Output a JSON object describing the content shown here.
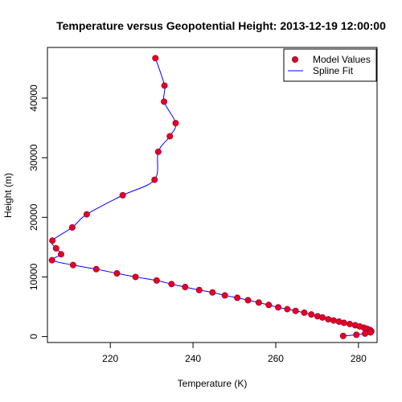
{
  "chart_data": {
    "type": "scatter",
    "title": "Temperature versus Geopotential Height: 2013-12-19 12:00:00",
    "xlabel": "Temperature (K)",
    "ylabel": "Height (m)",
    "xlim": [
      204.8,
      284.5
    ],
    "ylim": [
      -1000,
      48500
    ],
    "xticks": [
      220,
      240,
      260,
      280
    ],
    "yticks": [
      0,
      10000,
      20000,
      30000,
      40000
    ],
    "grid": false,
    "legend_position": "top-right",
    "colors": {
      "points": "#e8001c",
      "point_edge": "#9b0040",
      "line": "#0000ff"
    },
    "series": [
      {
        "name": "Model Values",
        "kind": "points",
        "temperature": [
          230.9,
          233.1,
          233.0,
          235.8,
          234.4,
          231.6,
          230.7,
          223.0,
          214.3,
          210.8,
          206.0,
          206.9,
          208.1,
          205.9,
          211.0,
          216.6,
          221.6,
          226.1,
          231.2,
          234.8,
          238.1,
          241.5,
          244.7,
          247.7,
          250.7,
          253.3,
          255.9,
          258.3,
          260.6,
          262.8,
          264.8,
          266.9,
          268.6,
          270.1,
          271.3,
          272.7,
          274.0,
          275.3,
          276.5,
          277.9,
          279.2,
          280.3,
          281.3,
          282.1,
          282.8,
          283.1,
          282.9,
          281.6,
          279.5,
          276.3
        ],
        "height": [
          46700,
          42100,
          39400,
          35800,
          33600,
          31000,
          26300,
          23700,
          20500,
          18300,
          16100,
          14800,
          13800,
          12800,
          12000,
          11300,
          10600,
          10000,
          9400,
          8800,
          8300,
          7800,
          7400,
          6900,
          6500,
          6100,
          5700,
          5300,
          4900,
          4600,
          4300,
          4000,
          3700,
          3400,
          3200,
          2900,
          2700,
          2500,
          2300,
          2100,
          1900,
          1700,
          1500,
          1300,
          1100,
          900,
          700,
          500,
          300,
          100
        ]
      },
      {
        "name": "Spline Fit",
        "kind": "line"
      }
    ]
  }
}
